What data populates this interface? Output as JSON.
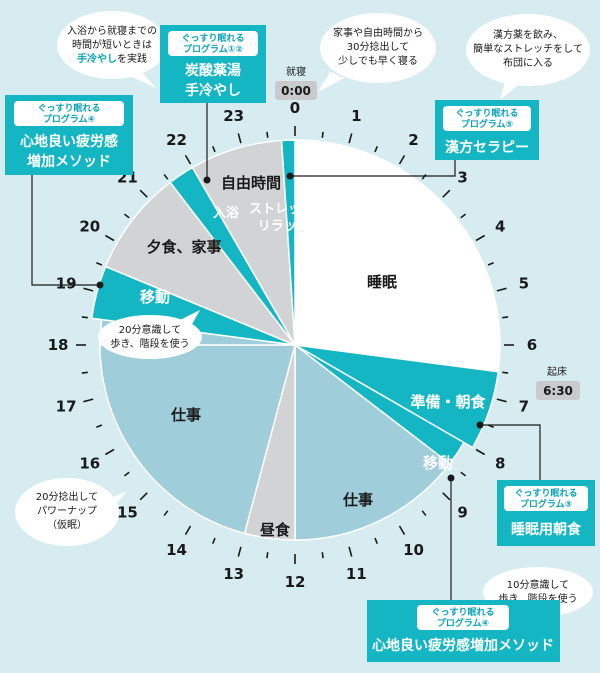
{
  "colors": {
    "background": "#d7ecf1",
    "teal": "#15b6c4",
    "teal_dark": "#0aa2b7",
    "sleep": "#ffffff",
    "work": "#9fcdd9",
    "gray": "#d2d3d4"
  },
  "hours": [
    "0",
    "1",
    "2",
    "3",
    "4",
    "5",
    "6",
    "7",
    "8",
    "9",
    "10",
    "11",
    "12",
    "13",
    "14",
    "15",
    "16",
    "17",
    "18",
    "19",
    "20",
    "21",
    "22",
    "23"
  ],
  "segments": {
    "sleep": "睡眠",
    "prep_breakfast": "準備・朝食",
    "commute_am": "移動",
    "work_am": "仕事",
    "lunch": "昼食",
    "work_pm": "仕事",
    "commute_pm": "移動",
    "dinner_chores": "夕食、家事",
    "bath": "入浴",
    "stretch_line1": "ストレッチ・",
    "stretch_line2": "リラックス",
    "free_time": "自由時間"
  },
  "badges": {
    "bedtime_label": "就寝",
    "bedtime_time": "0:00",
    "wake_label": "起床",
    "wake_time": "6:30"
  },
  "bubbles": {
    "bath_line1": "入浴から就寝までの",
    "bath_line2": "時間が短いときは",
    "bath_line3_highlight": "手冷やし",
    "bath_line3_rest": "を実践",
    "early_line1": "家事や自由時間から",
    "early_line2": "30分捻出して",
    "early_line3": "少しでも早く寝る",
    "kampo_line1": "漢方薬を飲み、",
    "kampo_line2": "簡単なストレッチをして",
    "kampo_line3": "布団に入る",
    "walk_pm_line1": "20分意識して",
    "walk_pm_line2": "歩き、階段を使う",
    "nap_line1": "20分捻出して",
    "nap_line2": "パワーナップ",
    "nap_line3": "（仮眠）",
    "walk_am_line1": "10分意識して",
    "walk_am_line2": "歩き、階段を使う"
  },
  "programs": {
    "p12_small": "ぐっすり眠れる",
    "p12_small2": "プログラム①②",
    "p12_big1": "炭酸薬湯",
    "p12_big2": "手冷やし",
    "p4a_small": "ぐっすり眠れる",
    "p4a_small2": "プログラム④",
    "p4a_big1": "心地良い疲労感",
    "p4a_big2": "増加メソッド",
    "p5_small": "ぐっすり眠れる",
    "p5_small2": "プログラム⑤",
    "p5_big": "漢方セラピー",
    "p3_small": "ぐっすり眠れる",
    "p3_small2": "プログラム③",
    "p3_big": "睡眠用朝食",
    "p4b_small": "ぐっすり眠れる",
    "p4b_small2": "プログラム④",
    "p4b_big": "心地良い疲労感増加メソッド"
  }
}
